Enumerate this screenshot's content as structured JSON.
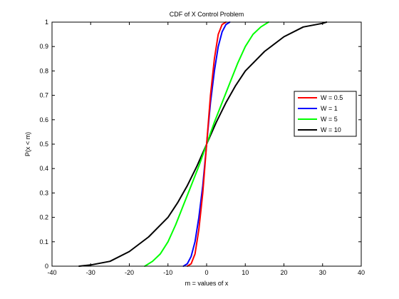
{
  "chart_data": {
    "type": "line",
    "title": "CDF of X Control Problem",
    "xlabel": "m = values of x",
    "ylabel": "P(x < m)",
    "xlim": [
      -40,
      40
    ],
    "ylim": [
      0,
      1
    ],
    "xticks": [
      -40,
      -30,
      -20,
      -10,
      0,
      10,
      20,
      30,
      40
    ],
    "xtick_labels": [
      "-40",
      "-30",
      "-20",
      "-10",
      "0",
      "10",
      "20",
      "30",
      "40"
    ],
    "yticks": [
      0,
      0.1,
      0.2,
      0.3,
      0.4,
      0.5,
      0.6,
      0.7,
      0.8,
      0.9,
      1
    ],
    "ytick_labels": [
      "0",
      "0.1",
      "0.2",
      "0.3",
      "0.4",
      "0.5",
      "0.6",
      "0.7",
      "0.8",
      "0.9",
      "1"
    ],
    "grid": false,
    "legend_position": "right",
    "series": [
      {
        "name": "W = 0.5",
        "color": "#ff0000",
        "points": [
          [
            -5.0,
            0.0
          ],
          [
            -4.0,
            0.01
          ],
          [
            -3.0,
            0.05
          ],
          [
            -2.0,
            0.15
          ],
          [
            -1.0,
            0.3
          ],
          [
            0.0,
            0.5
          ],
          [
            1.0,
            0.7
          ],
          [
            2.0,
            0.85
          ],
          [
            3.0,
            0.95
          ],
          [
            4.0,
            0.99
          ],
          [
            5.0,
            1.0
          ]
        ]
      },
      {
        "name": "W = 1",
        "color": "#0000ff",
        "points": [
          [
            -6.0,
            0.0
          ],
          [
            -5.0,
            0.01
          ],
          [
            -4.0,
            0.04
          ],
          [
            -3.0,
            0.1
          ],
          [
            -2.0,
            0.2
          ],
          [
            -1.0,
            0.33
          ],
          [
            0.0,
            0.5
          ],
          [
            1.0,
            0.67
          ],
          [
            2.0,
            0.8
          ],
          [
            3.0,
            0.9
          ],
          [
            4.0,
            0.96
          ],
          [
            5.0,
            0.99
          ],
          [
            6.0,
            1.0
          ]
        ]
      },
      {
        "name": "W = 5",
        "color": "#00ff00",
        "points": [
          [
            -16.0,
            0.0
          ],
          [
            -14.0,
            0.02
          ],
          [
            -12.0,
            0.05
          ],
          [
            -10.0,
            0.1
          ],
          [
            -8.0,
            0.17
          ],
          [
            -6.0,
            0.25
          ],
          [
            -4.0,
            0.33
          ],
          [
            -2.0,
            0.41
          ],
          [
            0.0,
            0.5
          ],
          [
            2.0,
            0.59
          ],
          [
            4.0,
            0.67
          ],
          [
            6.0,
            0.75
          ],
          [
            8.0,
            0.83
          ],
          [
            10.0,
            0.9
          ],
          [
            12.0,
            0.95
          ],
          [
            14.0,
            0.98
          ],
          [
            16.0,
            1.0
          ]
        ]
      },
      {
        "name": "W = 10",
        "color": "#000000",
        "points": [
          [
            -33.0,
            0.0
          ],
          [
            -30.0,
            0.005
          ],
          [
            -25.0,
            0.02
          ],
          [
            -20.0,
            0.06
          ],
          [
            -15.0,
            0.12
          ],
          [
            -10.0,
            0.2
          ],
          [
            -7.5,
            0.26
          ],
          [
            -5.0,
            0.33
          ],
          [
            -2.5,
            0.41
          ],
          [
            0.0,
            0.5
          ],
          [
            2.5,
            0.59
          ],
          [
            5.0,
            0.67
          ],
          [
            7.5,
            0.74
          ],
          [
            10.0,
            0.8
          ],
          [
            15.0,
            0.88
          ],
          [
            20.0,
            0.94
          ],
          [
            25.0,
            0.98
          ],
          [
            30.0,
            0.995
          ],
          [
            31.0,
            1.0
          ]
        ]
      }
    ]
  }
}
